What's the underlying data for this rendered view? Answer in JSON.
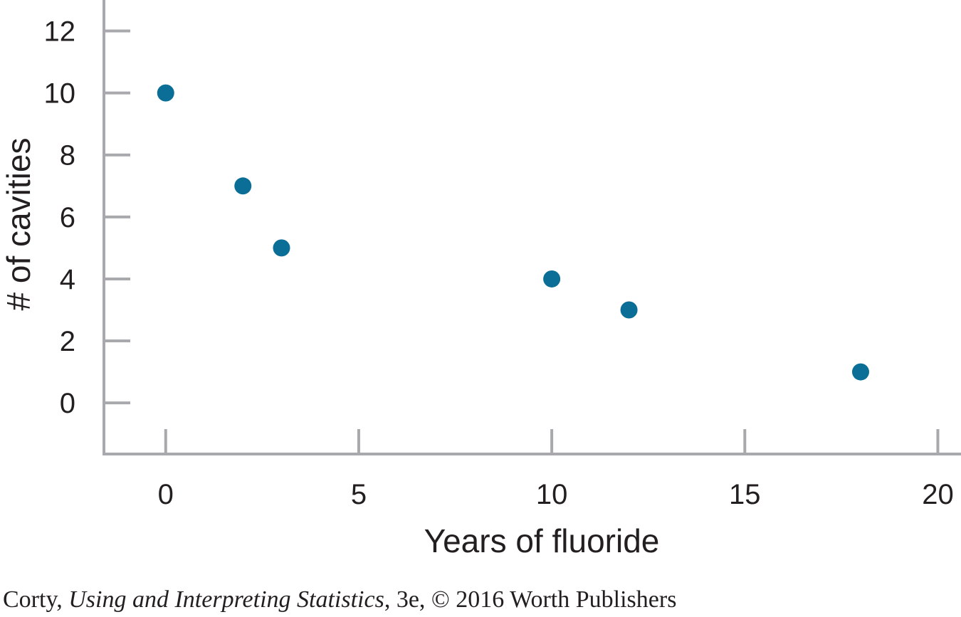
{
  "chart_data": {
    "type": "scatter",
    "xlabel": "Years of fluoride",
    "ylabel": "# of cavities",
    "x_ticks": [
      "0",
      "5",
      "10",
      "15",
      "20"
    ],
    "y_ticks": [
      "0",
      "2",
      "4",
      "6",
      "8",
      "10",
      "12"
    ],
    "xlim": [
      -1.6,
      20.6
    ],
    "ylim": [
      -1.65,
      13
    ],
    "grid": false,
    "legend": "none",
    "point_color": "#0a6e96",
    "axis_color": "#a7a9ac",
    "points": [
      {
        "x": 0,
        "y": 10
      },
      {
        "x": 2,
        "y": 7
      },
      {
        "x": 3,
        "y": 5
      },
      {
        "x": 10,
        "y": 4
      },
      {
        "x": 12,
        "y": 3
      },
      {
        "x": 18,
        "y": 1
      }
    ]
  },
  "credit": {
    "author": "Corty,",
    "book_title": "Using and Interpreting Statistics",
    "edition_publisher": ", 3e, © 2016 Worth Publishers"
  }
}
